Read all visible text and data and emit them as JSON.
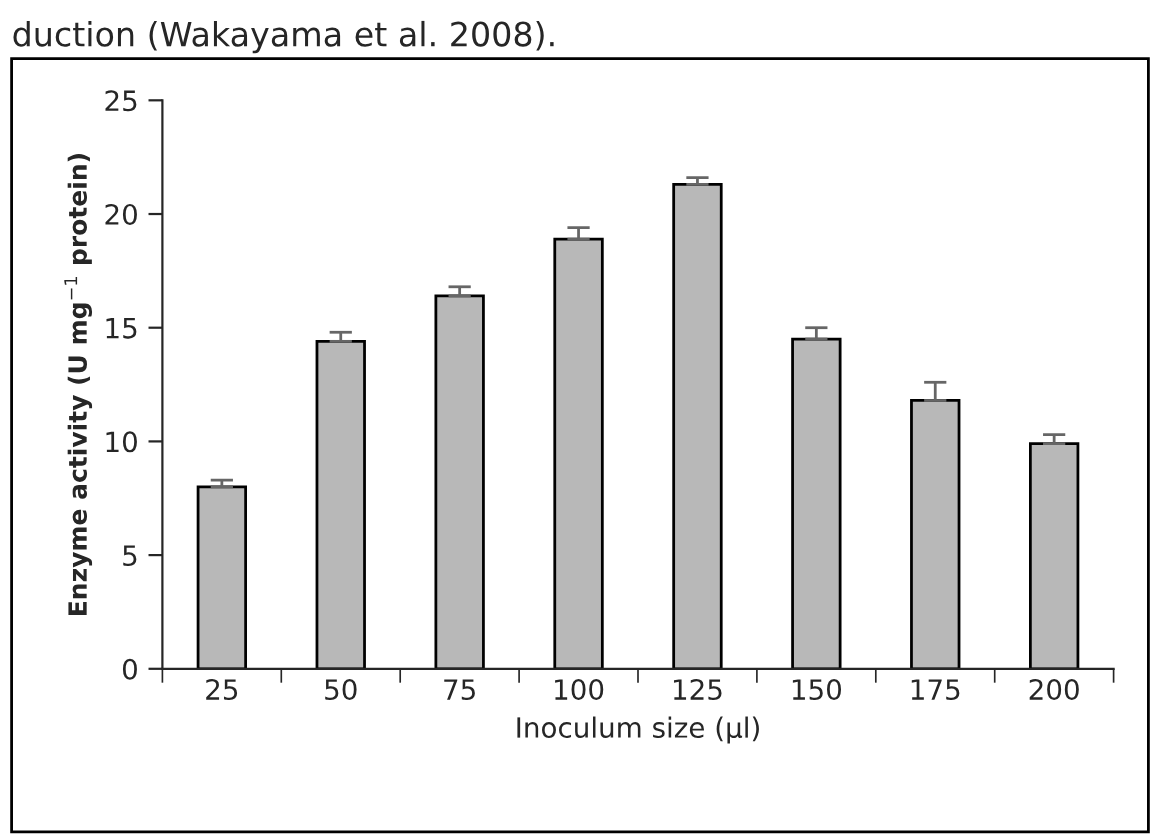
{
  "chart_data": {
    "type": "bar",
    "xlabel": "Inoculum size (µl)",
    "ylabel": "Enzyme activity (U mg$^{−1}$ protein)",
    "annotations": [
      "duction (Wakayama et al. 2008)."
    ],
    "categories": [
      "25",
      "50",
      "75",
      "100",
      "125",
      "150",
      "175",
      "200"
    ],
    "values": [
      8.0,
      14.4,
      16.4,
      18.9,
      21.3,
      14.5,
      11.8,
      9.9
    ],
    "errors": [
      0.3,
      0.4,
      0.4,
      0.5,
      0.3,
      0.5,
      0.8,
      0.4
    ],
    "color": "#b8b8b8",
    "ylim": [
      0,
      25
    ],
    "yticks": [
      0,
      5,
      10,
      15,
      20,
      25
    ],
    "grid": false,
    "legend": false
  }
}
